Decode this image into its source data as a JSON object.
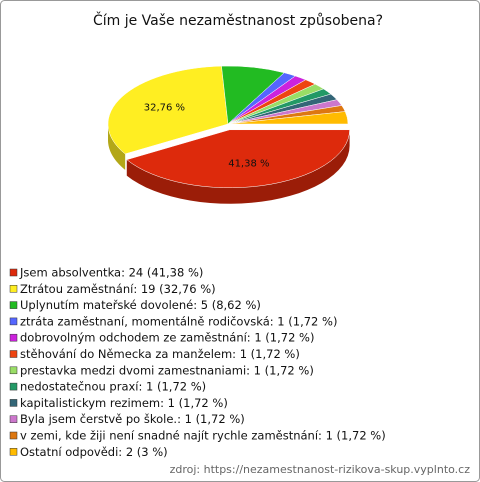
{
  "chart_data": {
    "type": "pie",
    "title": "Čím je Vaše nezaměstnanost způsobena?",
    "categories": [
      "Jsem absolventka: 24 (41,38 %)",
      "Ztrátou zaměstnání: 19 (32,76 %)",
      "Uplynutím mateřské dovolené: 5 (8,62 %)",
      "ztráta zaměstnaní, momentálně rodičovská: 1 (1,72 %)",
      "dobrovolným odchodem ze zaměstnání: 1 (1,72 %)",
      "stěhování do Německa za manželem: 1 (1,72 %)",
      "prestavka medzi dvomi zamestnaniami: 1 (1,72 %)",
      "nedostatečnou praxí: 1 (1,72 %)",
      "kapitalistickym rezimem: 1 (1,72 %)",
      "Byla jsem čerstvě po škole.: 1 (1,72 %)",
      "v zemi, kde žiji není snadné najít rychle zaměstnání: 1 (1,72 %)",
      "Ostatní odpovědi: 2 (3 %)"
    ],
    "values": [
      24,
      19,
      5,
      1,
      1,
      1,
      1,
      1,
      1,
      1,
      1,
      2
    ],
    "value_labels": [
      "41,38 %",
      "32,76 %",
      null,
      null,
      null,
      null,
      null,
      null,
      null,
      null,
      null,
      null
    ],
    "colors": [
      "#dd2a0c",
      "#ffee22",
      "#22bb22",
      "#5566ff",
      "#cc22dd",
      "#ee4411",
      "#99dd66",
      "#229966",
      "#336677",
      "#cc77cc",
      "#dd7711",
      "#ffbb00"
    ],
    "source": "zdroj: https://nezamestnanost-rizikova-skup.vyplnto.cz"
  }
}
